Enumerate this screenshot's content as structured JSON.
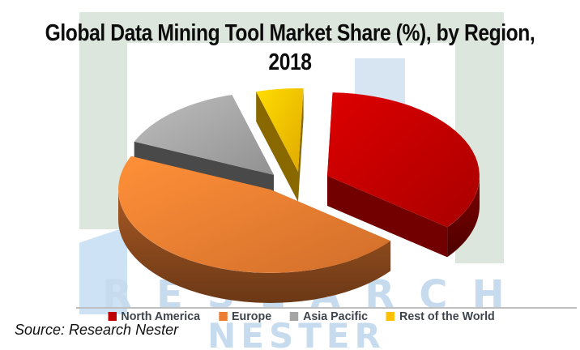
{
  "header": {
    "title_line1": "Global Data Mining Tool Market Share (%), by Region,",
    "title_line2": "2018"
  },
  "chart_data": {
    "type": "pie",
    "style": "3d-exploded",
    "title": "Global Data Mining Tool Market Share (%), by Region, 2018",
    "labels": [
      "North America",
      "Europe",
      "Asia Pacific",
      "Rest of the World"
    ],
    "values": [
      35,
      46,
      14,
      5
    ],
    "unit": "%",
    "colors": [
      "#C00000",
      "#ED7D31",
      "#A5A5A5",
      "#FFC000"
    ],
    "legend_position": "bottom",
    "data_labels_shown": false,
    "exploded_slice": "North America"
  },
  "footer": {
    "source": "Source: Research Nester"
  },
  "watermark": {
    "line1": "RESEARCH",
    "line2": "NESTER",
    "text_color": "#c7dbee",
    "frame_color": "#dce6dc",
    "accent_blue": "#d7e5f3"
  }
}
